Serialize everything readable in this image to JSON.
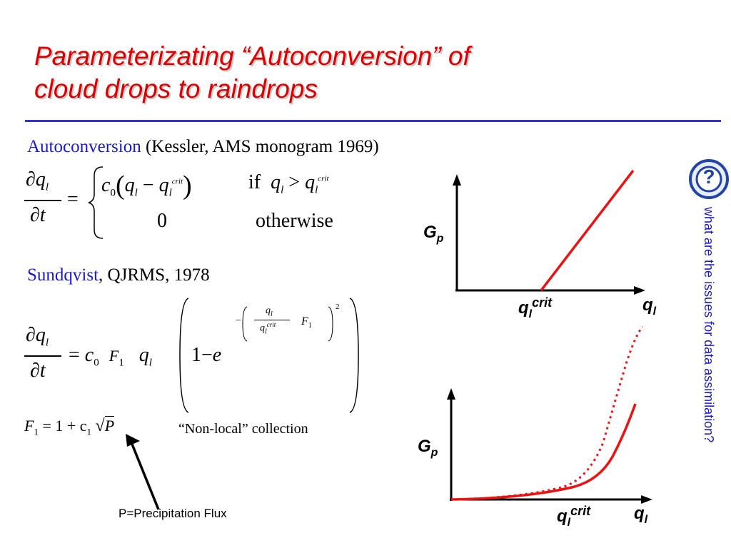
{
  "slide": {
    "title_line1": "Parameterizating “Autoconversion” of",
    "title_line2": "cloud drops to raindrops",
    "kessler": {
      "name": "Autoconversion",
      "ref": " (Kessler, AMS monogram 1969)"
    },
    "sundqvist": {
      "name": "Sundqvist",
      "ref": ", QJRMS, 1978"
    },
    "eq1": {
      "dq": "∂q",
      "sub_l": "l",
      "dt": "∂t",
      "eq": "=",
      "c0": "c",
      "zero_sub": "0",
      "minus": "−",
      "crit": "crit",
      "if": "if",
      "gt": ">",
      "zero": "0",
      "otherwise": "otherwise"
    },
    "eq2": {
      "dq": "∂q",
      "sub_l": "l",
      "dt": "∂t",
      "eq": "=",
      "c": "c",
      "zero_sub": "0",
      "F": "F",
      "one_sub": "1",
      "q": "q",
      "one_minus": "1−",
      "e": "e",
      "exp_minus": "−",
      "crit": "crit",
      "square": "2"
    },
    "f1_eq": {
      "F": "F",
      "one_sub": "1",
      "rhs": "= 1 + c",
      "P": "P"
    },
    "nonlocal_note": "“Non-local” collection",
    "precip_label": "P=Precipitation Flux",
    "sidebar_question": "what are the issues for data assimilation?",
    "help_icon_glyph": "?",
    "graph1": {
      "ylabel": "G",
      "ylabel_sub": "p",
      "xlabel": "q",
      "xlabel_sub": "l",
      "crit_label": "q",
      "crit_sub": "l",
      "crit_sup": "crit"
    },
    "graph2": {
      "ylabel": "G",
      "ylabel_sub": "p",
      "xlabel": "q",
      "xlabel_sub": "l",
      "crit_label": "q",
      "crit_sub": "l",
      "crit_sup": "crit"
    },
    "colors": {
      "title": "#dd0000",
      "accent_blue": "#1a1acc",
      "rule": "#3333cc",
      "curve": "#ee1111"
    }
  }
}
